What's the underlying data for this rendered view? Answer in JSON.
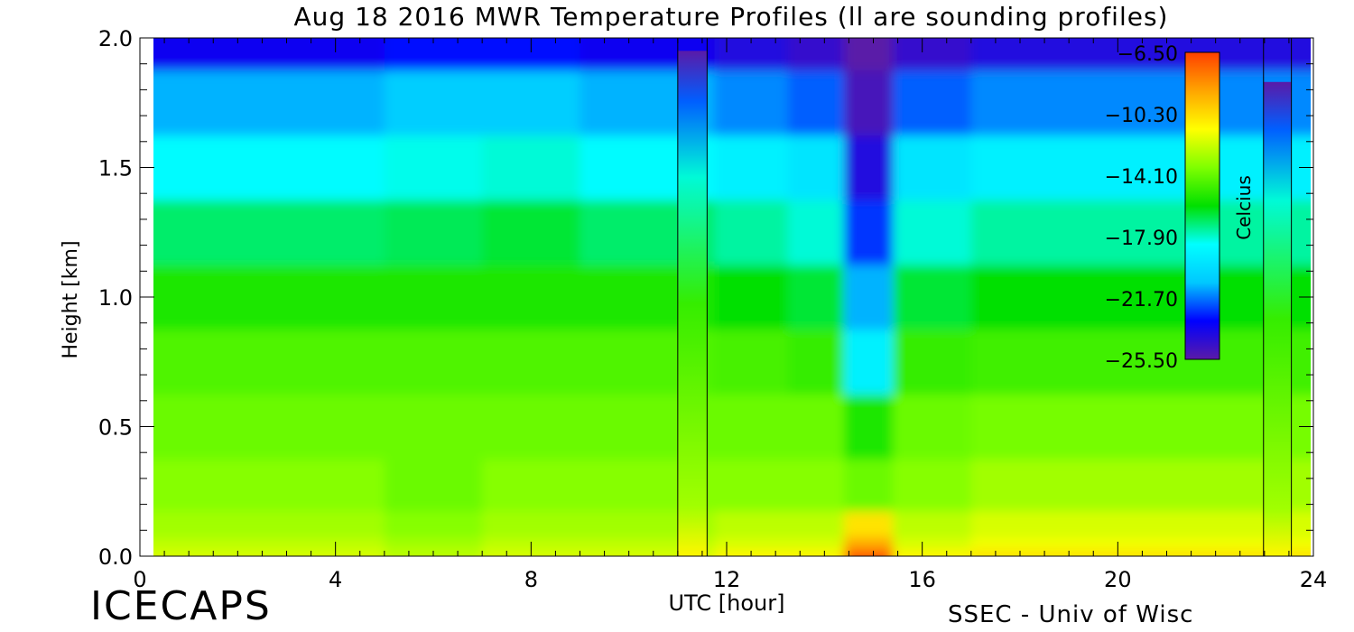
{
  "title": "Aug 18 2016 MWR Temperature Profiles (ll are sounding profiles)",
  "footer": {
    "left": "ICECAPS",
    "right": "SSEC - Univ of Wisc"
  },
  "colors": {
    "scale": [
      "#5a1aa8",
      "#0000ff",
      "#00c8ff",
      "#00ffff",
      "#00e000",
      "#7fff00",
      "#ffff00",
      "#ffa500",
      "#ff4000"
    ],
    "frame": "#000000"
  },
  "chart_data": {
    "type": "heatmap",
    "title": "Aug 18 2016 MWR Temperature Profiles (ll are sounding profiles)",
    "xlabel": "UTC [hour]",
    "ylabel": "Height [km]",
    "xlim": [
      0,
      24
    ],
    "ylim": [
      0,
      2
    ],
    "xticks": [
      "0",
      "4",
      "8",
      "12",
      "16",
      "20",
      "24"
    ],
    "yticks": [
      "0.0",
      "0.5",
      "1.0",
      "1.5",
      "2.0"
    ],
    "x": [
      0.5,
      2,
      4,
      6,
      8,
      10,
      11,
      12.5,
      14,
      14.8,
      16,
      18,
      20,
      22
    ],
    "y": [
      0,
      0.05,
      0.1,
      0.25,
      0.5,
      0.75,
      1.0,
      1.25,
      1.5,
      1.75,
      2.0
    ],
    "values": [
      [
        -12,
        -12,
        -12,
        -12.5,
        -12,
        -12,
        -12,
        -11,
        -11,
        -7,
        -11,
        -10.5,
        -10.5,
        -10.5
      ],
      [
        -12.5,
        -12.5,
        -12.5,
        -13,
        -12.5,
        -12.5,
        -12.5,
        -12,
        -12,
        -9,
        -12,
        -11.5,
        -11.5,
        -11.5
      ],
      [
        -13,
        -13,
        -13,
        -13.5,
        -13,
        -13,
        -13,
        -12.5,
        -12.5,
        -10.5,
        -12.5,
        -12,
        -12,
        -12
      ],
      [
        -13.5,
        -13.5,
        -13.5,
        -14,
        -13.5,
        -13.5,
        -13.5,
        -13.5,
        -13.5,
        -14,
        -13.5,
        -13,
        -13,
        -13
      ],
      [
        -14,
        -14,
        -14,
        -14,
        -14,
        -14,
        -14,
        -14,
        -14,
        -15.5,
        -14,
        -13.8,
        -13.8,
        -13.8
      ],
      [
        -14.5,
        -14.5,
        -14.5,
        -14.5,
        -14.5,
        -14.5,
        -14.5,
        -14.7,
        -15,
        -19,
        -15,
        -14.8,
        -14.8,
        -14.8
      ],
      [
        -15.5,
        -15.5,
        -15.5,
        -15.5,
        -15.5,
        -15.5,
        -15.5,
        -16,
        -16.5,
        -21,
        -16.5,
        -16,
        -16,
        -16
      ],
      [
        -17,
        -17,
        -17,
        -16.8,
        -16.5,
        -17,
        -17,
        -17.5,
        -18,
        -22.5,
        -18,
        -17.5,
        -17.5,
        -17.5
      ],
      [
        -18.5,
        -18.5,
        -18.5,
        -18.2,
        -18,
        -18.5,
        -18.5,
        -19,
        -19.5,
        -24,
        -19.5,
        -19,
        -19,
        -19
      ],
      [
        -21,
        -21,
        -21,
        -20.5,
        -20.5,
        -21,
        -21,
        -21.5,
        -22,
        -25,
        -22,
        -21.5,
        -21.5,
        -21.5
      ],
      [
        -23.5,
        -23.5,
        -23.5,
        -23,
        -23,
        -23.5,
        -23.5,
        -24,
        -24.5,
        -25.5,
        -24.5,
        -24,
        -24,
        -24
      ]
    ],
    "sounding_markers": [
      {
        "x_start": 11.0,
        "x_end": 11.6,
        "top_km": 1.95
      },
      {
        "x_start": 22.98,
        "x_end": 23.55,
        "top_km": 1.83
      }
    ],
    "colorbar": {
      "label": "Celcius",
      "min": -25.5,
      "max": -6.5,
      "ticks": [
        "-6.50",
        "-10.30",
        "-14.10",
        "-17.90",
        "-21.70",
        "-25.50"
      ]
    },
    "grid": false
  }
}
